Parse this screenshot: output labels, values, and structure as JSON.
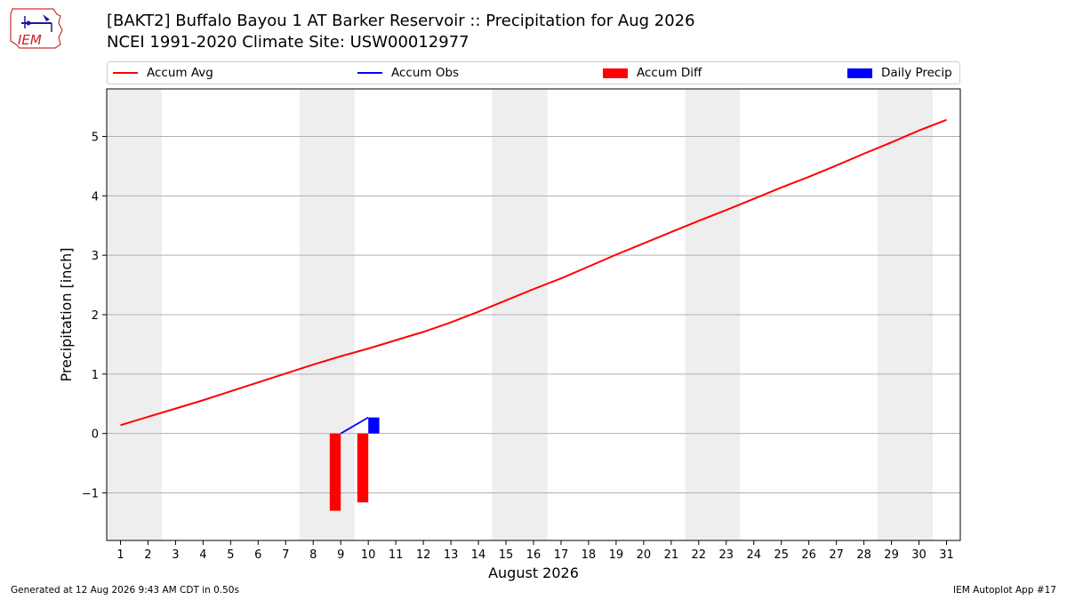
{
  "header": {
    "title_line1": "[BAKT2] Buffalo Bayou 1 AT Barker Reservoir :: Precipitation for Aug 2026",
    "title_line2": "NCEI 1991-2020 Climate Site: USW00012977",
    "logo_text": "IEM"
  },
  "legend": {
    "items": [
      {
        "label": "Accum Avg",
        "kind": "line",
        "color": "#ff0000"
      },
      {
        "label": "Accum Obs",
        "kind": "line",
        "color": "#0000ff"
      },
      {
        "label": "Accum Diff",
        "kind": "patch",
        "color": "#ff0000"
      },
      {
        "label": "Daily Precip",
        "kind": "patch",
        "color": "#0000ff"
      }
    ]
  },
  "footer": {
    "generated": "Generated at 12 Aug 2026 9:43 AM CDT in 0.50s",
    "app": "IEM Autoplot App #17"
  },
  "colors": {
    "avg": "#ff0000",
    "obs": "#0000ff",
    "diff": "#ff0000",
    "daily": "#0000ff",
    "weekend_band": "#eeeeee",
    "grid": "#b0b0b0"
  },
  "chart_data": {
    "type": "line",
    "xlabel": "August 2026",
    "ylabel": "Precipitation [inch]",
    "xlim": [
      0.5,
      31.5
    ],
    "ylim": [
      -1.8,
      5.8
    ],
    "x_ticks": [
      1,
      2,
      3,
      4,
      5,
      6,
      7,
      8,
      9,
      10,
      11,
      12,
      13,
      14,
      15,
      16,
      17,
      18,
      19,
      20,
      21,
      22,
      23,
      24,
      25,
      26,
      27,
      28,
      29,
      30,
      31
    ],
    "y_ticks": [
      -1,
      0,
      1,
      2,
      3,
      4,
      5
    ],
    "y_tick_labels": [
      "−1",
      "0",
      "1",
      "2",
      "3",
      "4",
      "5"
    ],
    "grid": "horizontal",
    "legend_position": "top",
    "weekend_bands": [
      [
        1,
        2
      ],
      [
        8,
        9
      ],
      [
        15,
        16
      ],
      [
        22,
        23
      ],
      [
        29,
        30
      ]
    ],
    "accum_avg": {
      "name": "Accum Avg",
      "x": [
        1,
        2,
        3,
        4,
        5,
        6,
        7,
        8,
        9,
        10,
        11,
        12,
        13,
        14,
        15,
        16,
        17,
        18,
        19,
        20,
        21,
        22,
        23,
        24,
        25,
        26,
        27,
        28,
        29,
        30,
        31
      ],
      "values": [
        0.14,
        0.28,
        0.42,
        0.56,
        0.71,
        0.86,
        1.01,
        1.16,
        1.3,
        1.43,
        1.57,
        1.71,
        1.87,
        2.05,
        2.24,
        2.43,
        2.61,
        2.81,
        3.01,
        3.2,
        3.39,
        3.58,
        3.76,
        3.95,
        4.14,
        4.32,
        4.51,
        4.71,
        4.9,
        5.1,
        5.28
      ]
    },
    "accum_obs": {
      "name": "Accum Obs",
      "x": [
        9,
        10
      ],
      "values": [
        0.0,
        0.27
      ]
    },
    "accum_diff": {
      "name": "Accum Diff",
      "x": [
        9,
        10
      ],
      "values": [
        -1.3,
        -1.16
      ]
    },
    "daily_precip": {
      "name": "Daily Precip",
      "x": [
        9,
        10
      ],
      "values": [
        0.0,
        0.27
      ]
    }
  }
}
